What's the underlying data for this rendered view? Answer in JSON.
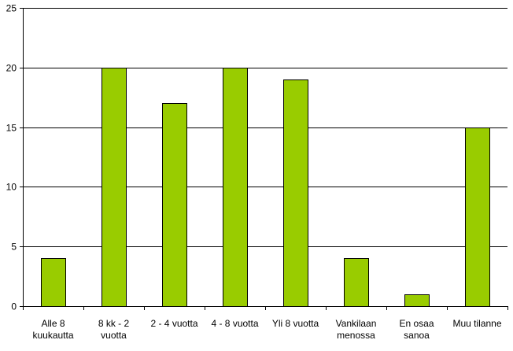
{
  "chart_data": {
    "type": "bar",
    "categories": [
      [
        "Alle 8",
        "kuukautta"
      ],
      [
        "8 kk - 2",
        "vuotta"
      ],
      [
        "2 - 4 vuotta"
      ],
      [
        "4 - 8 vuotta"
      ],
      [
        "Yli 8 vuotta"
      ],
      [
        "Vankilaan",
        "menossa"
      ],
      [
        "En osaa",
        "sanoa"
      ],
      [
        "Muu tilanne"
      ]
    ],
    "values": [
      4,
      20,
      17,
      20,
      19,
      4,
      1,
      15
    ],
    "ylim": [
      0,
      25
    ],
    "yticks": [
      0,
      5,
      10,
      15,
      20,
      25
    ],
    "grid": true,
    "bar_color": "#99CC00",
    "bar_outline": "#000000"
  }
}
